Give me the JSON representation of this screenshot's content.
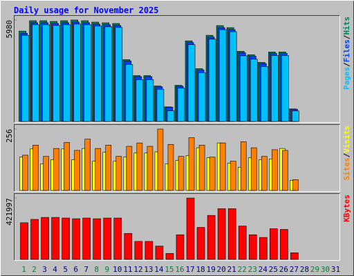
{
  "chart_data": {
    "type": "bar",
    "title": "Daily usage for November 2025",
    "categories": [
      "1",
      "2",
      "3",
      "4",
      "5",
      "6",
      "7",
      "8",
      "9",
      "10",
      "11",
      "12",
      "13",
      "14",
      "15",
      "16",
      "17",
      "18",
      "19",
      "20",
      "21",
      "22",
      "23",
      "24",
      "25",
      "26",
      "27",
      "28",
      "29",
      "30",
      "31"
    ],
    "category_colors": [
      "#008040",
      "#008040",
      "#000080",
      "#000080",
      "#000080",
      "#000080",
      "#000080",
      "#008040",
      "#008040",
      "#000080",
      "#000080",
      "#000080",
      "#000080",
      "#000080",
      "#008040",
      "#008040",
      "#000080",
      "#000080",
      "#000080",
      "#000080",
      "#000080",
      "#008040",
      "#008040",
      "#000080",
      "#000080",
      "#000080",
      "#000080",
      "#000080",
      "#008040",
      "#008040",
      "#000080"
    ],
    "legend_separator": "/",
    "panels": [
      {
        "ylim": [
          0,
          5980
        ],
        "yticks": [
          5980
        ],
        "legend_order": [
          2,
          1,
          0
        ],
        "series": [
          {
            "name": "Hits",
            "color": "#00805c",
            "values": [
              5325,
              5939,
              5939,
              5898,
              5939,
              5980,
              5939,
              5857,
              5816,
              5775,
              3645,
              2703,
              2703,
              2089,
              860,
              2130,
              4751,
              3113,
              5079,
              5652,
              5529,
              4137,
              3932,
              3482,
              4096,
              4096,
              737,
              null,
              null,
              null,
              null
            ]
          },
          {
            "name": "Files",
            "color": "#0040ff",
            "values": [
              5200,
              5820,
              5820,
              5780,
              5820,
              5860,
              5820,
              5740,
              5700,
              5660,
              3560,
              2640,
              2640,
              2040,
              840,
              2080,
              4650,
              3040,
              4970,
              5530,
              5410,
              4050,
              3850,
              3410,
              4010,
              4010,
              720,
              null,
              null,
              null,
              null
            ]
          },
          {
            "name": "Pages",
            "color": "#00c0ff",
            "values": [
              5080,
              5700,
              5700,
              5660,
              5700,
              5740,
              5700,
              5620,
              5580,
              5540,
              3360,
              2460,
              2460,
              1900,
              630,
              1960,
              4530,
              2880,
              4850,
              5410,
              5290,
              3870,
              3670,
              3240,
              3890,
              3890,
              620,
              null,
              null,
              null,
              null
            ]
          }
        ]
      },
      {
        "ylim": [
          0,
          256
        ],
        "yticks": [
          256
        ],
        "legend_order": [
          1,
          0
        ],
        "series": [
          {
            "name": "Visits",
            "color": "#ffff00",
            "values": [
              139,
              173,
              111,
              128,
              173,
              128,
              175,
              122,
              159,
              122,
              139,
              156,
              156,
              161,
              111,
              125,
              145,
              178,
              136,
              198,
              114,
              97,
              136,
              128,
              131,
              175,
              42,
              null,
              null,
              null,
              null
            ]
          },
          {
            "name": "Sites",
            "color": "#ff8000",
            "values": [
              147,
              189,
              142,
              175,
              200,
              167,
              214,
              175,
              189,
              142,
              184,
              198,
              184,
              256,
              192,
              142,
              220,
              189,
              139,
              198,
              122,
              203,
              178,
              142,
              170,
              167,
              45,
              null,
              null,
              null,
              null
            ]
          }
        ]
      },
      {
        "ylim": [
          0,
          421997
        ],
        "yticks": [
          421997
        ],
        "legend_order": [
          0
        ],
        "series": [
          {
            "name": "KBytes",
            "color": "#ff0000",
            "values": [
              252300,
              275200,
              289000,
              289000,
              284400,
              279800,
              284400,
              279800,
              284400,
              284400,
              178900,
              123800,
              123800,
              91700,
              41300,
              169700,
              421997,
              220200,
              302700,
              348600,
              348600,
              229400,
              169700,
              151400,
              211000,
              206400,
              45900,
              null,
              null,
              null,
              null
            ]
          }
        ]
      }
    ]
  }
}
